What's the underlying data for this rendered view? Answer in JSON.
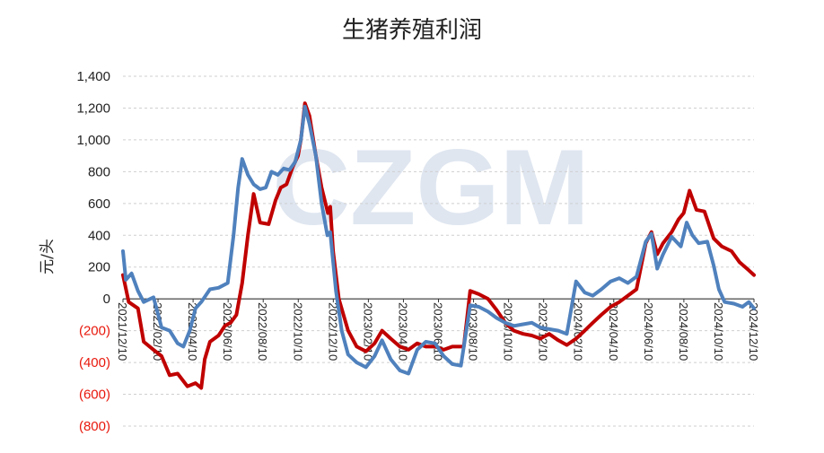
{
  "chart_data": {
    "type": "line",
    "title": "生猪养殖利润",
    "ylabel": "元/头",
    "xlabel": "",
    "watermark": "CZGM",
    "ylim": [
      -800,
      1400
    ],
    "yticks": [
      1400,
      1200,
      1000,
      800,
      600,
      400,
      200,
      0,
      -200,
      -400,
      -600,
      -800
    ],
    "ytick_labels": [
      "1,400",
      "1,200",
      "1,000",
      "800",
      "600",
      "400",
      "200",
      "0",
      "(200)",
      "(400)",
      "(600)",
      "(800)"
    ],
    "negative_tick_color": "#e8180c",
    "positive_tick_color": "#222222",
    "grid": "horizontal-dashed",
    "xlim": [
      "2021-12-10",
      "2024-12-10"
    ],
    "xtick_labels": [
      "2021/12/10",
      "2022/02/10",
      "2022/04/10",
      "2022/06/10",
      "2022/08/10",
      "2022/10/10",
      "2022/12/10",
      "2023/02/10",
      "2023/04/10",
      "2023/06/10",
      "2023/08/10",
      "2023/10/10",
      "2023/12/10",
      "2024/02/10",
      "2024/04/10",
      "2024/06/10",
      "2024/08/10",
      "2024/10/10",
      "2024/12/10"
    ],
    "series": [
      {
        "color": "#c00000",
        "points": [
          [
            "2021-12-10",
            150
          ],
          [
            "2021-12-20",
            -20
          ],
          [
            "2022-01-05",
            -60
          ],
          [
            "2022-01-15",
            -270
          ],
          [
            "2022-02-01",
            -320
          ],
          [
            "2022-02-15",
            -360
          ],
          [
            "2022-03-01",
            -480
          ],
          [
            "2022-03-15",
            -470
          ],
          [
            "2022-04-01",
            -550
          ],
          [
            "2022-04-15",
            -530
          ],
          [
            "2022-04-25",
            -560
          ],
          [
            "2022-05-01",
            -380
          ],
          [
            "2022-05-10",
            -270
          ],
          [
            "2022-05-25",
            -230
          ],
          [
            "2022-06-05",
            -170
          ],
          [
            "2022-06-15",
            -150
          ],
          [
            "2022-06-25",
            -100
          ],
          [
            "2022-07-05",
            100
          ],
          [
            "2022-07-15",
            400
          ],
          [
            "2022-07-25",
            660
          ],
          [
            "2022-08-05",
            480
          ],
          [
            "2022-08-20",
            470
          ],
          [
            "2022-09-01",
            620
          ],
          [
            "2022-09-10",
            700
          ],
          [
            "2022-09-20",
            720
          ],
          [
            "2022-10-01",
            830
          ],
          [
            "2022-10-10",
            900
          ],
          [
            "2022-10-15",
            1000
          ],
          [
            "2022-10-22",
            1230
          ],
          [
            "2022-10-30",
            1150
          ],
          [
            "2022-11-10",
            900
          ],
          [
            "2022-11-20",
            700
          ],
          [
            "2022-12-01",
            540
          ],
          [
            "2022-12-05",
            580
          ],
          [
            "2022-12-10",
            300
          ],
          [
            "2022-12-20",
            0
          ],
          [
            "2023-01-05",
            -200
          ],
          [
            "2023-01-20",
            -300
          ],
          [
            "2023-02-05",
            -330
          ],
          [
            "2023-02-20",
            -280
          ],
          [
            "2023-03-05",
            -200
          ],
          [
            "2023-03-20",
            -250
          ],
          [
            "2023-04-05",
            -300
          ],
          [
            "2023-04-20",
            -320
          ],
          [
            "2023-05-05",
            -280
          ],
          [
            "2023-05-20",
            -300
          ],
          [
            "2023-06-05",
            -300
          ],
          [
            "2023-06-20",
            -320
          ],
          [
            "2023-07-05",
            -300
          ],
          [
            "2023-07-25",
            -300
          ],
          [
            "2023-08-05",
            50
          ],
          [
            "2023-08-20",
            30
          ],
          [
            "2023-09-05",
            0
          ],
          [
            "2023-09-20",
            -70
          ],
          [
            "2023-10-05",
            -150
          ],
          [
            "2023-10-20",
            -200
          ],
          [
            "2023-11-05",
            -220
          ],
          [
            "2023-11-20",
            -230
          ],
          [
            "2023-12-05",
            -250
          ],
          [
            "2023-12-20",
            -220
          ],
          [
            "2024-01-05",
            -260
          ],
          [
            "2024-01-20",
            -290
          ],
          [
            "2024-02-05",
            -250
          ],
          [
            "2024-02-20",
            -200
          ],
          [
            "2024-03-05",
            -150
          ],
          [
            "2024-03-20",
            -100
          ],
          [
            "2024-04-05",
            -50
          ],
          [
            "2024-04-20",
            -20
          ],
          [
            "2024-05-05",
            20
          ],
          [
            "2024-05-20",
            60
          ],
          [
            "2024-06-05",
            350
          ],
          [
            "2024-06-15",
            420
          ],
          [
            "2024-06-25",
            280
          ],
          [
            "2024-07-05",
            350
          ],
          [
            "2024-07-20",
            420
          ],
          [
            "2024-08-01",
            500
          ],
          [
            "2024-08-10",
            540
          ],
          [
            "2024-08-20",
            680
          ],
          [
            "2024-09-01",
            560
          ],
          [
            "2024-09-15",
            550
          ],
          [
            "2024-10-01",
            380
          ],
          [
            "2024-10-15",
            330
          ],
          [
            "2024-11-01",
            300
          ],
          [
            "2024-11-15",
            230
          ],
          [
            "2024-12-01",
            180
          ],
          [
            "2024-12-10",
            150
          ]
        ]
      },
      {
        "color": "#4f81bd",
        "points": [
          [
            "2021-12-10",
            300
          ],
          [
            "2021-12-15",
            120
          ],
          [
            "2021-12-25",
            160
          ],
          [
            "2022-01-05",
            50
          ],
          [
            "2022-01-15",
            -20
          ],
          [
            "2022-02-01",
            10
          ],
          [
            "2022-02-15",
            -180
          ],
          [
            "2022-03-01",
            -200
          ],
          [
            "2022-03-15",
            -280
          ],
          [
            "2022-03-25",
            -300
          ],
          [
            "2022-04-05",
            -200
          ],
          [
            "2022-04-15",
            -60
          ],
          [
            "2022-04-25",
            -20
          ],
          [
            "2022-05-10",
            60
          ],
          [
            "2022-05-25",
            70
          ],
          [
            "2022-06-10",
            100
          ],
          [
            "2022-06-20",
            400
          ],
          [
            "2022-06-28",
            700
          ],
          [
            "2022-07-05",
            880
          ],
          [
            "2022-07-15",
            780
          ],
          [
            "2022-07-25",
            720
          ],
          [
            "2022-08-05",
            690
          ],
          [
            "2022-08-15",
            700
          ],
          [
            "2022-08-25",
            800
          ],
          [
            "2022-09-05",
            780
          ],
          [
            "2022-09-15",
            820
          ],
          [
            "2022-09-25",
            810
          ],
          [
            "2022-10-05",
            860
          ],
          [
            "2022-10-15",
            1000
          ],
          [
            "2022-10-22",
            1210
          ],
          [
            "2022-10-30",
            1100
          ],
          [
            "2022-11-10",
            900
          ],
          [
            "2022-11-20",
            600
          ],
          [
            "2022-11-30",
            400
          ],
          [
            "2022-12-05",
            420
          ],
          [
            "2022-12-15",
            50
          ],
          [
            "2022-12-25",
            -200
          ],
          [
            "2023-01-05",
            -350
          ],
          [
            "2023-01-20",
            -400
          ],
          [
            "2023-02-05",
            -430
          ],
          [
            "2023-02-20",
            -360
          ],
          [
            "2023-03-05",
            -260
          ],
          [
            "2023-03-20",
            -380
          ],
          [
            "2023-04-05",
            -450
          ],
          [
            "2023-04-20",
            -470
          ],
          [
            "2023-05-05",
            -320
          ],
          [
            "2023-05-20",
            -270
          ],
          [
            "2023-06-05",
            -280
          ],
          [
            "2023-06-20",
            -360
          ],
          [
            "2023-07-05",
            -410
          ],
          [
            "2023-07-20",
            -420
          ],
          [
            "2023-08-05",
            -40
          ],
          [
            "2023-08-20",
            -50
          ],
          [
            "2023-09-05",
            -80
          ],
          [
            "2023-09-20",
            -120
          ],
          [
            "2023-10-05",
            -150
          ],
          [
            "2023-10-20",
            -170
          ],
          [
            "2023-11-05",
            -160
          ],
          [
            "2023-11-20",
            -150
          ],
          [
            "2023-12-05",
            -180
          ],
          [
            "2023-12-20",
            -190
          ],
          [
            "2024-01-05",
            -200
          ],
          [
            "2024-01-20",
            -220
          ],
          [
            "2024-02-05",
            110
          ],
          [
            "2024-02-20",
            40
          ],
          [
            "2024-03-05",
            20
          ],
          [
            "2024-03-20",
            60
          ],
          [
            "2024-04-05",
            110
          ],
          [
            "2024-04-20",
            130
          ],
          [
            "2024-05-05",
            100
          ],
          [
            "2024-05-20",
            140
          ],
          [
            "2024-06-05",
            360
          ],
          [
            "2024-06-15",
            410
          ],
          [
            "2024-06-25",
            190
          ],
          [
            "2024-07-05",
            280
          ],
          [
            "2024-07-20",
            390
          ],
          [
            "2024-08-05",
            330
          ],
          [
            "2024-08-15",
            480
          ],
          [
            "2024-08-25",
            400
          ],
          [
            "2024-09-05",
            350
          ],
          [
            "2024-09-20",
            360
          ],
          [
            "2024-10-01",
            210
          ],
          [
            "2024-10-10",
            60
          ],
          [
            "2024-10-20",
            -20
          ],
          [
            "2024-11-05",
            -30
          ],
          [
            "2024-11-20",
            -50
          ],
          [
            "2024-12-01",
            -20
          ],
          [
            "2024-12-10",
            -60
          ]
        ]
      }
    ]
  }
}
